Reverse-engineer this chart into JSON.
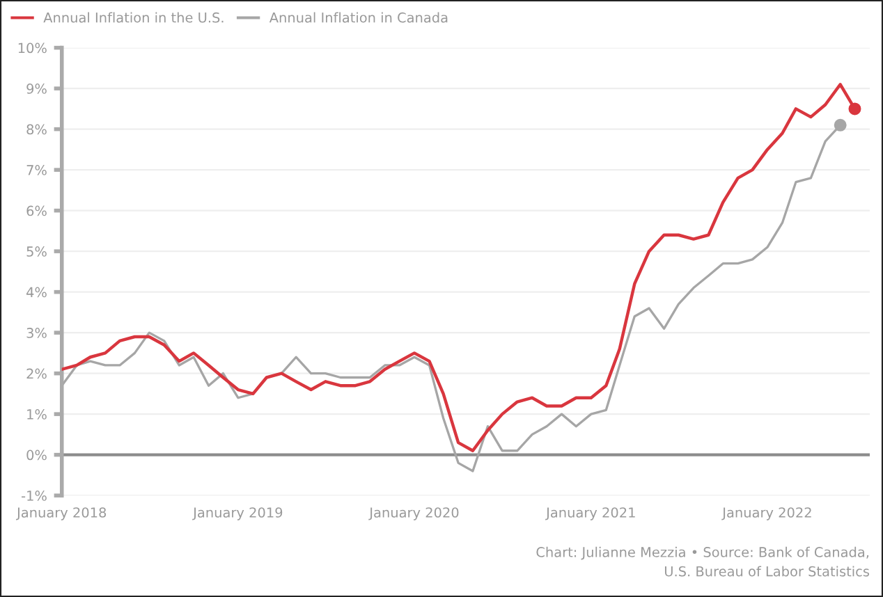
{
  "chart_data": {
    "type": "line",
    "x": [
      "2018-01",
      "2018-02",
      "2018-03",
      "2018-04",
      "2018-05",
      "2018-06",
      "2018-07",
      "2018-08",
      "2018-09",
      "2018-10",
      "2018-11",
      "2018-12",
      "2019-01",
      "2019-02",
      "2019-03",
      "2019-04",
      "2019-05",
      "2019-06",
      "2019-07",
      "2019-08",
      "2019-09",
      "2019-10",
      "2019-11",
      "2019-12",
      "2020-01",
      "2020-02",
      "2020-03",
      "2020-04",
      "2020-05",
      "2020-06",
      "2020-07",
      "2020-08",
      "2020-09",
      "2020-10",
      "2020-11",
      "2020-12",
      "2021-01",
      "2021-02",
      "2021-03",
      "2021-04",
      "2021-05",
      "2021-06",
      "2021-07",
      "2021-08",
      "2021-09",
      "2021-10",
      "2021-11",
      "2021-12",
      "2022-01",
      "2022-02",
      "2022-03",
      "2022-04",
      "2022-05",
      "2022-06",
      "2022-07"
    ],
    "series": [
      {
        "name": "Annual Inflation in the U.S.",
        "color": "#d9363e",
        "values": [
          2.1,
          2.2,
          2.4,
          2.5,
          2.8,
          2.9,
          2.9,
          2.7,
          2.3,
          2.5,
          2.2,
          1.9,
          1.6,
          1.5,
          1.9,
          2.0,
          1.8,
          1.6,
          1.8,
          1.7,
          1.7,
          1.8,
          2.1,
          2.3,
          2.5,
          2.3,
          1.5,
          0.3,
          0.1,
          0.6,
          1.0,
          1.3,
          1.4,
          1.2,
          1.2,
          1.4,
          1.4,
          1.7,
          2.6,
          4.2,
          5.0,
          5.4,
          5.4,
          5.3,
          5.4,
          6.2,
          6.8,
          7.0,
          7.5,
          7.9,
          8.5,
          8.3,
          8.6,
          9.1,
          8.5
        ]
      },
      {
        "name": "Annual Inflation in Canada",
        "color": "#a6a6a6",
        "values": [
          1.7,
          2.2,
          2.3,
          2.2,
          2.2,
          2.5,
          3.0,
          2.8,
          2.2,
          2.4,
          1.7,
          2.0,
          1.4,
          1.5,
          1.9,
          2.0,
          2.4,
          2.0,
          2.0,
          1.9,
          1.9,
          1.9,
          2.2,
          2.2,
          2.4,
          2.2,
          0.9,
          -0.2,
          -0.4,
          0.7,
          0.1,
          0.1,
          0.5,
          0.7,
          1.0,
          0.7,
          1.0,
          1.1,
          2.2,
          3.4,
          3.6,
          3.1,
          3.7,
          4.1,
          4.4,
          4.7,
          4.7,
          4.8,
          5.1,
          5.7,
          6.7,
          6.8,
          7.7,
          8.1,
          null
        ]
      },
      {
        "type": "scatter",
        "color": "#d9363e",
        "x": [
          "2022-07"
        ],
        "values": [
          8.5
        ]
      },
      {
        "type": "scatter",
        "color": "#a6a6a6",
        "x": [
          "2022-06"
        ],
        "values": [
          8.1
        ]
      }
    ],
    "xlim": [
      "2018-01",
      "2022-08"
    ],
    "xticks": [
      {
        "value": "2018-01",
        "label": "January 2018"
      },
      {
        "value": "2019-01",
        "label": "January 2019"
      },
      {
        "value": "2020-01",
        "label": "January 2020"
      },
      {
        "value": "2021-01",
        "label": "January 2021"
      },
      {
        "value": "2022-01",
        "label": "January 2022"
      }
    ],
    "ylim": [
      -1,
      10
    ],
    "yticks": [
      {
        "value": -1,
        "label": "-1%"
      },
      {
        "value": 0,
        "label": "0%"
      },
      {
        "value": 1,
        "label": "1%"
      },
      {
        "value": 2,
        "label": "2%"
      },
      {
        "value": 3,
        "label": "3%"
      },
      {
        "value": 4,
        "label": "4%"
      },
      {
        "value": 5,
        "label": "5%"
      },
      {
        "value": 6,
        "label": "6%"
      },
      {
        "value": 7,
        "label": "7%"
      },
      {
        "value": 8,
        "label": "8%"
      },
      {
        "value": 9,
        "label": "9%"
      },
      {
        "value": 10,
        "label": "10%"
      }
    ],
    "ref_lines": [
      {
        "axis": "y",
        "value": 0,
        "color": "#8c8c8c"
      }
    ],
    "grid": "y",
    "legend": "top left",
    "annotations": [
      "Chart: Julianne Mezzia • Source: Bank of Canada,\nU.S. Bureau of Labor Statistics"
    ]
  }
}
